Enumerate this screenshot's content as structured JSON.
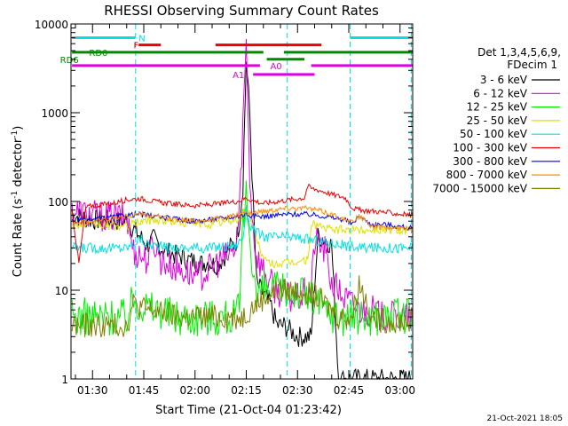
{
  "chart_data": {
    "type": "line",
    "title": "RHESSI Observing Summary Count Rates",
    "xlabel": "Start Time (21-Oct-04 01:23:42)",
    "ylabel": "Count Rate (s",
    "ylabel_sup1": "-1",
    "ylabel_mid": " detector",
    "ylabel_sup2": "-1",
    "ylabel_end": ")",
    "yscale": "log",
    "ylim": [
      1,
      10000
    ],
    "xlim_min": [
      83.7,
      183.7
    ],
    "x_ticks_min": [
      90,
      105,
      120,
      135,
      150,
      165,
      180
    ],
    "x_tick_labels": [
      "01:30",
      "01:45",
      "02:00",
      "02:15",
      "02:30",
      "02:45",
      "03:00"
    ],
    "y_ticks": [
      1,
      10,
      100,
      1000,
      10000
    ],
    "y_tick_labels": [
      "1",
      "10",
      "100",
      "1000",
      "10000"
    ],
    "legend_title_1": "Det 1,3,4,5,6,9,",
    "legend_title_2": "FDecim 1",
    "legend_position": "right",
    "timestamp": "21-Oct-2021 18:05",
    "series": [
      {
        "name": "3 - 6 keV",
        "color": "#000000",
        "t": [
          84,
          90,
          100,
          104,
          106,
          108,
          110,
          112,
          114,
          116,
          118,
          120,
          122,
          124,
          126,
          128,
          130,
          132,
          133,
          134,
          135,
          136,
          137,
          138,
          140,
          142,
          144,
          146,
          148,
          150,
          152,
          154,
          155,
          156,
          158,
          160,
          162,
          164,
          166,
          168,
          170,
          172,
          174,
          176,
          178,
          180,
          182,
          183.7
        ],
        "v": [
          70,
          62,
          60,
          40,
          32,
          38,
          30,
          27,
          25,
          24,
          22,
          21,
          20,
          21,
          19,
          22,
          30,
          35,
          60,
          150,
          4000,
          1000,
          100,
          12,
          9,
          7,
          4,
          4,
          3.5,
          3,
          3,
          3,
          12,
          40,
          38,
          32,
          1,
          1,
          1,
          1,
          1,
          1,
          1,
          1,
          1,
          1,
          1,
          1
        ]
      },
      {
        "name": "6 - 12 keV",
        "color": "#e000e0",
        "t": [
          84,
          90,
          100,
          102,
          104,
          106,
          108,
          110,
          112,
          114,
          116,
          118,
          120,
          122,
          124,
          126,
          128,
          130,
          132,
          133,
          134,
          135,
          136,
          137,
          138,
          140,
          142,
          144,
          146,
          148,
          150,
          152,
          154,
          155,
          156,
          158,
          160,
          162,
          164,
          166,
          168,
          170,
          172,
          174,
          176,
          178,
          180,
          182,
          183.7
        ],
        "v": [
          80,
          70,
          66,
          28,
          25,
          22,
          35,
          22,
          20,
          18,
          17,
          16,
          14,
          15,
          17,
          20,
          22,
          25,
          30,
          80,
          800,
          6000,
          200,
          50,
          25,
          17,
          12,
          10,
          9,
          8,
          8,
          9,
          10,
          35,
          35,
          28,
          12,
          10,
          8,
          7,
          6,
          6,
          6,
          5,
          5,
          5,
          5,
          5,
          5
        ]
      },
      {
        "name": "12 - 25 keV",
        "color": "#00ee00",
        "t": [
          84,
          90,
          100,
          102,
          104,
          106,
          108,
          110,
          112,
          114,
          116,
          118,
          120,
          122,
          124,
          126,
          128,
          130,
          132,
          133,
          134,
          135,
          136,
          137,
          138,
          140,
          142,
          144,
          146,
          148,
          150,
          152,
          154,
          156,
          158,
          160,
          162,
          164,
          166,
          168,
          170,
          172,
          174,
          176,
          178,
          180,
          182,
          183.7
        ],
        "v": [
          5,
          5,
          5,
          8,
          7,
          6.5,
          6,
          6,
          5.5,
          5,
          5,
          5,
          5,
          5,
          5,
          5,
          5,
          5,
          5,
          6,
          50,
          120,
          40,
          20,
          8,
          10,
          10,
          10,
          10,
          10,
          10,
          9,
          8,
          7,
          6,
          5.5,
          5,
          5,
          5,
          5,
          5,
          5,
          5,
          5,
          5,
          5,
          5,
          5
        ]
      },
      {
        "name": "25 - 50 keV",
        "color": "#e0e000",
        "t": [
          84,
          90,
          100,
          104,
          108,
          112,
          116,
          120,
          124,
          128,
          132,
          134,
          135,
          136,
          138,
          140,
          142,
          146,
          150,
          153,
          154,
          156,
          158,
          160,
          164,
          170,
          176,
          180,
          183.7
        ],
        "v": [
          55,
          55,
          52,
          60,
          62,
          60,
          58,
          56,
          55,
          58,
          62,
          70,
          90,
          70,
          40,
          22,
          20,
          20,
          21,
          22,
          55,
          55,
          50,
          48,
          48,
          48,
          48,
          48,
          48
        ]
      },
      {
        "name": "50 - 100 keV",
        "color": "#00e0e0",
        "t": [
          84,
          90,
          100,
          102,
          104,
          106,
          108,
          110,
          112,
          114,
          116,
          118,
          120,
          124,
          128,
          132,
          134,
          135,
          136,
          138,
          140,
          144,
          148,
          152,
          156,
          160,
          164,
          168,
          172,
          176,
          180,
          183.7
        ],
        "v": [
          30,
          30,
          30,
          34,
          38,
          33,
          32,
          31,
          30,
          30,
          30,
          30,
          30,
          30,
          31,
          32,
          40,
          80,
          55,
          45,
          40,
          40,
          40,
          38,
          36,
          34,
          32,
          30,
          30,
          30,
          30,
          30
        ]
      },
      {
        "name": "100 - 300 keV",
        "color": "#ee0000",
        "t": [
          84,
          86,
          88,
          90,
          96,
          100,
          104,
          108,
          112,
          116,
          120,
          124,
          128,
          132,
          134,
          135,
          136,
          138,
          140,
          144,
          148,
          152,
          153,
          154,
          156,
          158,
          160,
          162,
          164,
          166,
          168,
          172,
          176,
          180,
          183.7
        ],
        "v": [
          80,
          20,
          85,
          90,
          95,
          105,
          108,
          100,
          95,
          92,
          90,
          92,
          95,
          100,
          105,
          110,
          105,
          100,
          95,
          100,
          105,
          110,
          150,
          140,
          135,
          128,
          120,
          115,
          110,
          85,
          80,
          78,
          75,
          72,
          70
        ]
      },
      {
        "name": "300 - 800 keV",
        "color": "#0000ee",
        "t": [
          84,
          90,
          100,
          104,
          108,
          112,
          116,
          120,
          124,
          128,
          132,
          134,
          135,
          136,
          138,
          140,
          144,
          148,
          152,
          156,
          160,
          164,
          166,
          168,
          170,
          172,
          176,
          180,
          183.7
        ],
        "v": [
          60,
          62,
          70,
          72,
          68,
          65,
          62,
          60,
          62,
          65,
          68,
          70,
          72,
          70,
          68,
          68,
          70,
          72,
          72,
          70,
          66,
          62,
          55,
          70,
          60,
          55,
          55,
          52,
          50
        ]
      },
      {
        "name": "800 - 7000 keV",
        "color": "#ff8c00",
        "t": [
          84,
          90,
          100,
          104,
          108,
          112,
          116,
          120,
          124,
          128,
          132,
          134,
          136,
          138,
          140,
          144,
          148,
          152,
          156,
          160,
          164,
          166,
          168,
          170,
          172,
          176,
          180,
          183.7
        ],
        "v": [
          58,
          60,
          68,
          72,
          68,
          64,
          62,
          60,
          62,
          65,
          70,
          72,
          74,
          76,
          78,
          82,
          85,
          84,
          80,
          72,
          62,
          58,
          70,
          58,
          52,
          50,
          50,
          48
        ]
      },
      {
        "name": "7000 - 15000 keV",
        "color": "#808000",
        "t": [
          84,
          90,
          100,
          102,
          104,
          106,
          108,
          110,
          112,
          114,
          116,
          118,
          120,
          122,
          124,
          126,
          128,
          130,
          132,
          134,
          136,
          138,
          140,
          142,
          144,
          146,
          148,
          150,
          152,
          154,
          156,
          158,
          160,
          162,
          164,
          166,
          168,
          170,
          172,
          174,
          176,
          178,
          180,
          182,
          183.7
        ],
        "v": [
          4,
          4,
          4,
          7,
          6.5,
          6,
          6,
          5.5,
          5.5,
          5,
          5,
          5,
          5,
          5,
          5,
          5,
          5,
          5,
          5,
          5,
          6,
          7,
          8,
          9,
          10,
          10,
          10,
          10,
          10,
          9,
          8,
          7,
          6,
          5,
          5,
          5,
          12,
          8,
          5,
          4.5,
          4.5,
          4.5,
          4.5,
          4.5,
          4.5
        ]
      }
    ],
    "flags": [
      {
        "label": "N",
        "color": "#00e0e0",
        "y": 7000,
        "segments": [
          [
            84,
            102.5
          ],
          [
            165.5,
            183.7
          ]
        ],
        "label_min": 103.5
      },
      {
        "label": "F",
        "color": "#ee0000",
        "y": 5800,
        "segments": [
          [
            103.5,
            110
          ],
          [
            126,
            157
          ]
        ],
        "label_min": 102
      },
      {
        "label": "RD0",
        "color": "#008800",
        "y": 4800,
        "segments": [
          [
            84,
            140
          ],
          [
            146,
            183.7
          ]
        ],
        "label_min": 89
      },
      {
        "label": "RD6",
        "color": "#008800",
        "y": 4000,
        "segments": [
          [
            84.5,
            85
          ],
          [
            141,
            152
          ]
        ],
        "label_min": 80.5
      },
      {
        "label": "A0",
        "color": "#e000e0",
        "y": 3400,
        "segments": [
          [
            84,
            139
          ],
          [
            154,
            183.7
          ]
        ],
        "label_min": 142
      },
      {
        "label": "A1",
        "color": "#e000e0",
        "y": 2700,
        "segments": [
          [
            137,
            155
          ]
        ],
        "label_min": 131
      }
    ],
    "dashed_lines_min": [
      102.6,
      147.0,
      165.4,
      183.3
    ]
  }
}
